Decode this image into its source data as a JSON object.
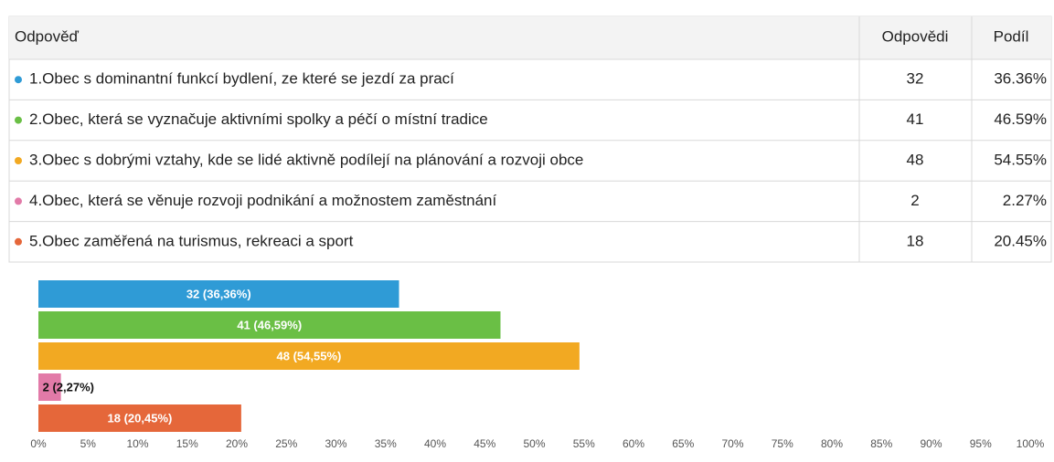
{
  "table": {
    "header": [
      "Odpověď",
      "Odpovědi",
      "Podíl"
    ],
    "rows": [
      {
        "label": "1.Obec s dominantní funkcí bydlení, ze které se jezdí za prací",
        "count": 32,
        "share": "36.36%"
      },
      {
        "label": "2.Obec, která se vyznačuje aktivními spolky a péčí o místní tradice",
        "count": 41,
        "share": "46.59%"
      },
      {
        "label": "3.Obec s dobrými vztahy, kde se lidé aktivně podílejí na plánování a rozvoji obce",
        "count": 48,
        "share": "54.55%"
      },
      {
        "label": "4.Obec, která se věnuje rozvoji podnikání a možnostem zaměstnání",
        "count": 2,
        "share": "2.27%"
      },
      {
        "label": "5.Obec zaměřená na turismus, rekreaci a sport",
        "count": 18,
        "share": "20.45%"
      }
    ]
  },
  "chart_data": {
    "type": "bar",
    "orientation": "horizontal",
    "values": [
      36.36,
      46.59,
      54.55,
      2.27,
      20.45
    ],
    "value_labels": [
      "32 (36,36%)",
      "41 (46,59%)",
      "48 (54,55%)",
      "2 (2,27%)",
      "18 (20,45%)"
    ],
    "colors": [
      "#2f9bd6",
      "#6abf45",
      "#f2a922",
      "#e27aa8",
      "#e5673a"
    ],
    "xlim": [
      0,
      100
    ],
    "xticks": [
      {
        "value": 0,
        "label": "0%"
      },
      {
        "value": 5,
        "label": "5%"
      },
      {
        "value": 10,
        "label": "10%"
      },
      {
        "value": 15,
        "label": "15%"
      },
      {
        "value": 20,
        "label": "20%"
      },
      {
        "value": 25,
        "label": "25%"
      },
      {
        "value": 30,
        "label": "30%"
      },
      {
        "value": 35,
        "label": "35%"
      },
      {
        "value": 40,
        "label": "40%"
      },
      {
        "value": 45,
        "label": "45%"
      },
      {
        "value": 50,
        "label": "50%"
      },
      {
        "value": 55,
        "label": "55%"
      },
      {
        "value": 60,
        "label": "60%"
      },
      {
        "value": 65,
        "label": "65%"
      },
      {
        "value": 70,
        "label": "70%"
      },
      {
        "value": 75,
        "label": "75%"
      },
      {
        "value": 80,
        "label": "80%"
      },
      {
        "value": 85,
        "label": "85%"
      },
      {
        "value": 90,
        "label": "90%"
      },
      {
        "value": 95,
        "label": "95%"
      },
      {
        "value": 100,
        "label": "100%"
      }
    ],
    "grid": false
  }
}
